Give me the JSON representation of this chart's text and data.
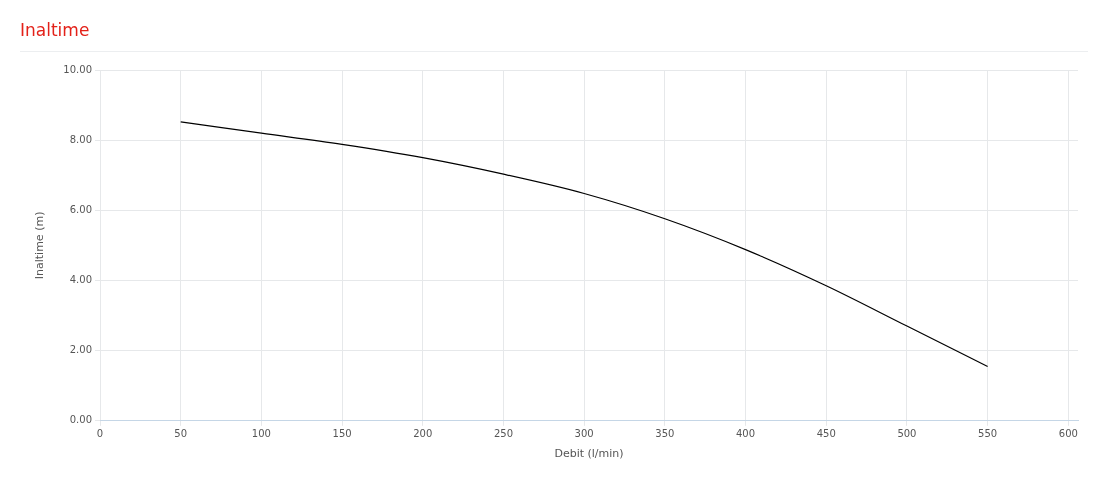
{
  "chart_data": {
    "type": "line",
    "title": "Inaltime",
    "xlabel": "Debit (l/min)",
    "ylabel": "Inaltime (m)",
    "x": [
      50,
      100,
      150,
      200,
      250,
      300,
      350,
      400,
      450,
      500,
      550
    ],
    "series": [
      {
        "color": "#000000",
        "values": [
          8.52,
          8.2,
          7.88,
          7.5,
          7.03,
          6.48,
          5.76,
          4.88,
          3.85,
          2.7,
          1.55
        ]
      }
    ],
    "xlim": [
      0,
      606
    ],
    "xticks": [
      0,
      50,
      100,
      150,
      200,
      250,
      300,
      350,
      400,
      450,
      500,
      550,
      600
    ],
    "ylim": [
      0,
      10
    ],
    "yticks": [
      {
        "value": 0,
        "label": "0.00"
      },
      {
        "value": 2,
        "label": "2.00"
      },
      {
        "value": 4,
        "label": "4.00"
      },
      {
        "value": 6,
        "label": "6.00"
      },
      {
        "value": 8,
        "label": "8.00"
      },
      {
        "value": 10,
        "label": "10.00"
      }
    ],
    "grid": true,
    "legend": false,
    "marker": "none",
    "line_style": "solid"
  }
}
